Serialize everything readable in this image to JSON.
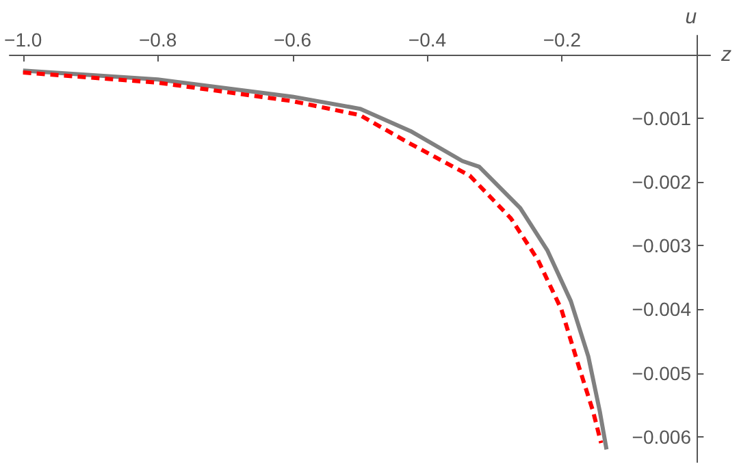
{
  "chart_data": {
    "type": "line",
    "xlabel": "z",
    "ylabel": "u",
    "marker": "none",
    "grid": false,
    "xlim": [
      -1.02,
      0.02
    ],
    "ylim": [
      -0.0064,
      0.0003
    ],
    "xticks": [
      {
        "value": -1.0,
        "label": "−1.0"
      },
      {
        "value": -0.8,
        "label": "−0.8"
      },
      {
        "value": -0.6,
        "label": "−0.6"
      },
      {
        "value": -0.4,
        "label": "−0.4"
      },
      {
        "value": -0.2,
        "label": "−0.2"
      }
    ],
    "yticks": [
      {
        "value": -0.001,
        "label": "−0.001"
      },
      {
        "value": -0.002,
        "label": "−0.002"
      },
      {
        "value": -0.003,
        "label": "−0.003"
      },
      {
        "value": -0.004,
        "label": "−0.004"
      },
      {
        "value": -0.005,
        "label": "−0.005"
      },
      {
        "value": -0.006,
        "label": "−0.006"
      }
    ],
    "series": [
      {
        "color": "#808080",
        "line_style": "solid",
        "x": [
          -1.0,
          -0.8,
          -0.6,
          -0.5,
          -0.425,
          -0.348,
          -0.323,
          -0.262,
          -0.222,
          -0.187,
          -0.161,
          -0.144,
          -0.134
        ],
        "values": [
          -0.00025,
          -0.00039,
          -0.00066,
          -0.00085,
          -0.0012,
          -0.00167,
          -0.00176,
          -0.00241,
          -0.00307,
          -0.00387,
          -0.00474,
          -0.0056,
          -0.0062
        ]
      },
      {
        "color": "#ff0000",
        "line_style": "dashed",
        "x": [
          -1.0,
          -0.8,
          -0.6,
          -0.5,
          -0.425,
          -0.337,
          -0.276,
          -0.236,
          -0.201,
          -0.175,
          -0.154,
          -0.142
        ],
        "values": [
          -0.00028,
          -0.00044,
          -0.00073,
          -0.00095,
          -0.0014,
          -0.0019,
          -0.00257,
          -0.00322,
          -0.004,
          -0.0049,
          -0.0056,
          -0.0061
        ]
      }
    ]
  }
}
